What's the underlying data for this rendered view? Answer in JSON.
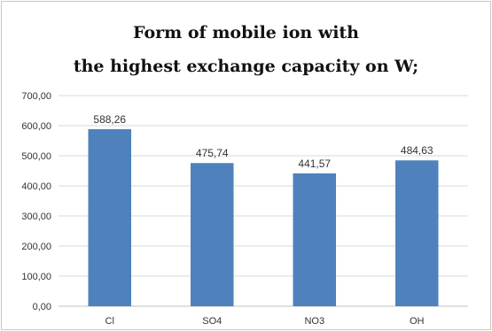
{
  "chart_data": {
    "type": "bar",
    "title_lines": [
      "Form of mobile ion with",
      "the highest exchange capacity on W;"
    ],
    "categories": [
      "Cl",
      "SO4",
      "NO3",
      "OH"
    ],
    "values": [
      588.26,
      475.74,
      441.57,
      484.63
    ],
    "value_labels": [
      "588,26",
      "475,74",
      "441,57",
      "484,63"
    ],
    "ylim": [
      0,
      700
    ],
    "yticks": [
      "0,00",
      "100,00",
      "200,00",
      "300,00",
      "400,00",
      "500,00",
      "600,00",
      "700,00"
    ],
    "xlabel": "",
    "ylabel": "",
    "grid": true,
    "legend": "none",
    "bar_color": "#4f81bd",
    "grid_color": "#d9d9d9"
  }
}
